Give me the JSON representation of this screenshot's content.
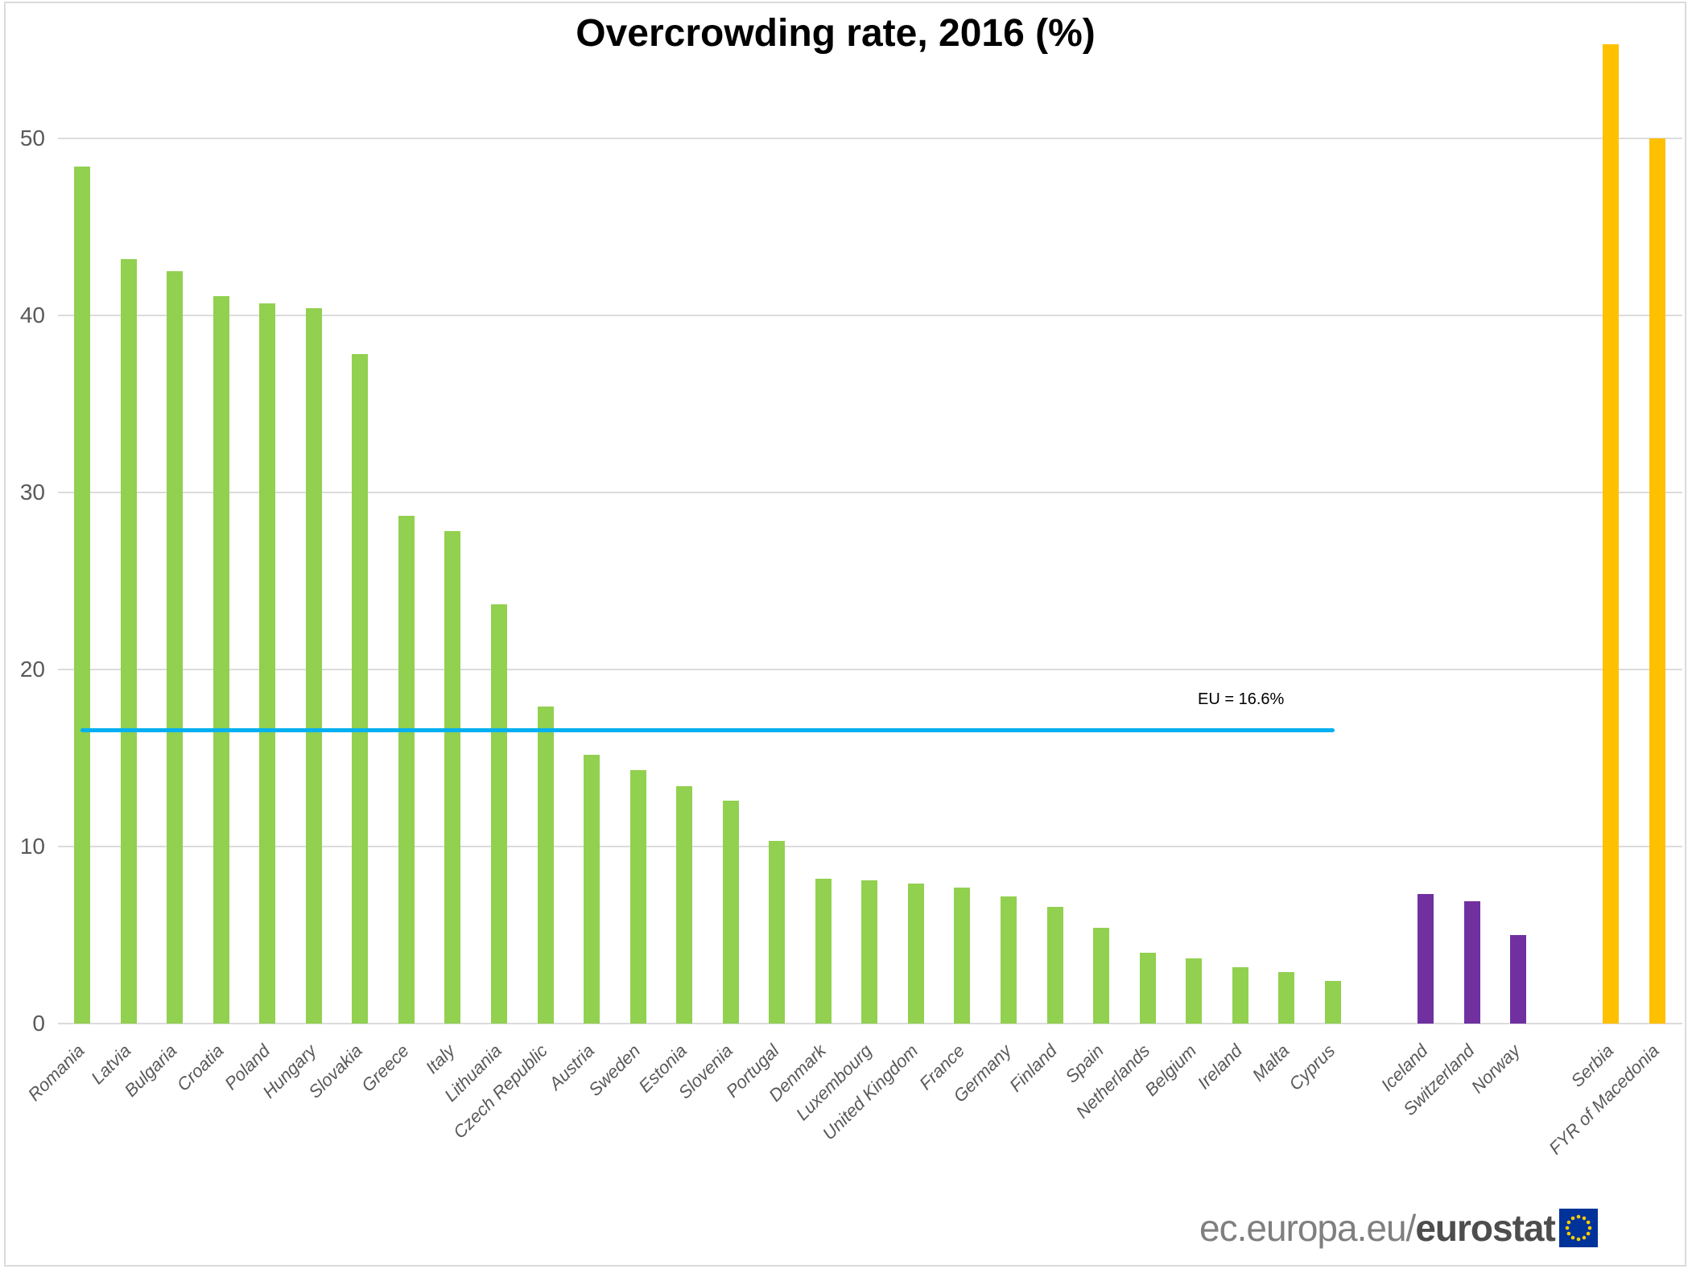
{
  "title": "Overcrowding rate, 2016 (%)",
  "chart_data": {
    "type": "bar",
    "title": "Overcrowding rate, 2016 (%)",
    "xlabel": "",
    "ylabel": "",
    "ylim": [
      0,
      57
    ],
    "yticks": [
      0,
      10,
      20,
      30,
      40,
      50
    ],
    "grid": true,
    "legend": "none",
    "group_colors": {
      "eu": "#92D050",
      "efta": "#7030A0",
      "candidate": "#FFC000"
    },
    "tick_color": "#595959",
    "grid_color": "#DCDCDC",
    "bars": [
      {
        "label": "Romania",
        "value": 48.4,
        "group": "eu"
      },
      {
        "label": "Latvia",
        "value": 43.2,
        "group": "eu"
      },
      {
        "label": "Bulgaria",
        "value": 42.5,
        "group": "eu"
      },
      {
        "label": "Croatia",
        "value": 41.1,
        "group": "eu"
      },
      {
        "label": "Poland",
        "value": 40.7,
        "group": "eu"
      },
      {
        "label": "Hungary",
        "value": 40.4,
        "group": "eu"
      },
      {
        "label": "Slovakia",
        "value": 37.8,
        "group": "eu"
      },
      {
        "label": "Greece",
        "value": 28.7,
        "group": "eu"
      },
      {
        "label": "Italy",
        "value": 27.8,
        "group": "eu"
      },
      {
        "label": "Lithuania",
        "value": 23.7,
        "group": "eu"
      },
      {
        "label": "Czech Republic",
        "value": 17.9,
        "group": "eu"
      },
      {
        "label": "Austria",
        "value": 15.2,
        "group": "eu"
      },
      {
        "label": "Sweden",
        "value": 14.3,
        "group": "eu"
      },
      {
        "label": "Estonia",
        "value": 13.4,
        "group": "eu"
      },
      {
        "label": "Slovenia",
        "value": 12.6,
        "group": "eu"
      },
      {
        "label": "Portugal",
        "value": 10.3,
        "group": "eu"
      },
      {
        "label": "Denmark",
        "value": 8.2,
        "group": "eu"
      },
      {
        "label": "Luxembourg",
        "value": 8.1,
        "group": "eu"
      },
      {
        "label": "United Kingdom",
        "value": 7.9,
        "group": "eu"
      },
      {
        "label": "France",
        "value": 7.7,
        "group": "eu"
      },
      {
        "label": "Germany",
        "value": 7.2,
        "group": "eu"
      },
      {
        "label": "Finland",
        "value": 6.6,
        "group": "eu"
      },
      {
        "label": "Spain",
        "value": 5.4,
        "group": "eu"
      },
      {
        "label": "Netherlands",
        "value": 4.0,
        "group": "eu"
      },
      {
        "label": "Belgium",
        "value": 3.7,
        "group": "eu"
      },
      {
        "label": "Ireland",
        "value": 3.2,
        "group": "eu"
      },
      {
        "label": "Malta",
        "value": 2.9,
        "group": "eu"
      },
      {
        "label": "Cyprus",
        "value": 2.4,
        "group": "eu"
      },
      {
        "label": "Iceland",
        "value": 7.3,
        "group": "efta"
      },
      {
        "label": "Switzerland",
        "value": 6.9,
        "group": "efta"
      },
      {
        "label": "Norway",
        "value": 5.0,
        "group": "efta"
      },
      {
        "label": "Serbia",
        "value": 55.3,
        "group": "candidate"
      },
      {
        "label": "FYR of Macedonia",
        "value": 50.0,
        "group": "candidate"
      }
    ],
    "reference_line": {
      "label": "EU = 16.6%",
      "value": 16.6,
      "color": "#00B0F0",
      "spans": "eu-bars-only"
    }
  },
  "footer": {
    "logo_prefix": "ec.europa.eu/",
    "logo_bold": "eurostat",
    "flag_blue": "#003399",
    "flag_star_color": "#FFCC00"
  }
}
